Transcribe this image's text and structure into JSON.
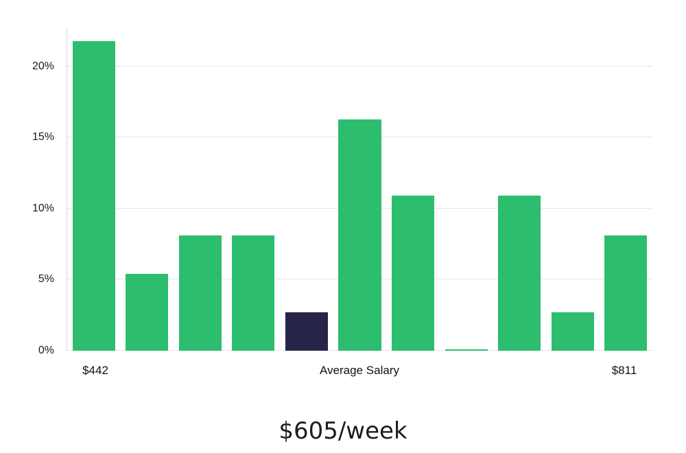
{
  "chart_data": {
    "type": "bar",
    "title": "$605/week",
    "xlabel": "",
    "ylabel": "",
    "ylim": [
      0,
      22.75
    ],
    "grid": true,
    "yticks": [
      0,
      5,
      10,
      15,
      20
    ],
    "ytick_labels": [
      "0%",
      "5%",
      "10%",
      "15%",
      "20%"
    ],
    "x_axis_labels": {
      "left": "$442",
      "center": "Average Salary",
      "right": "$811"
    },
    "values": [
      21.8,
      5.4,
      8.1,
      8.1,
      2.7,
      16.3,
      10.9,
      0.1,
      10.9,
      2.7,
      8.1
    ],
    "highlight_index": 4,
    "bar_color": "#2cbd6e",
    "highlight_color": "#262549",
    "gridline_color": "#e6e6e6",
    "axis_line_color": "#d6d6d6"
  }
}
